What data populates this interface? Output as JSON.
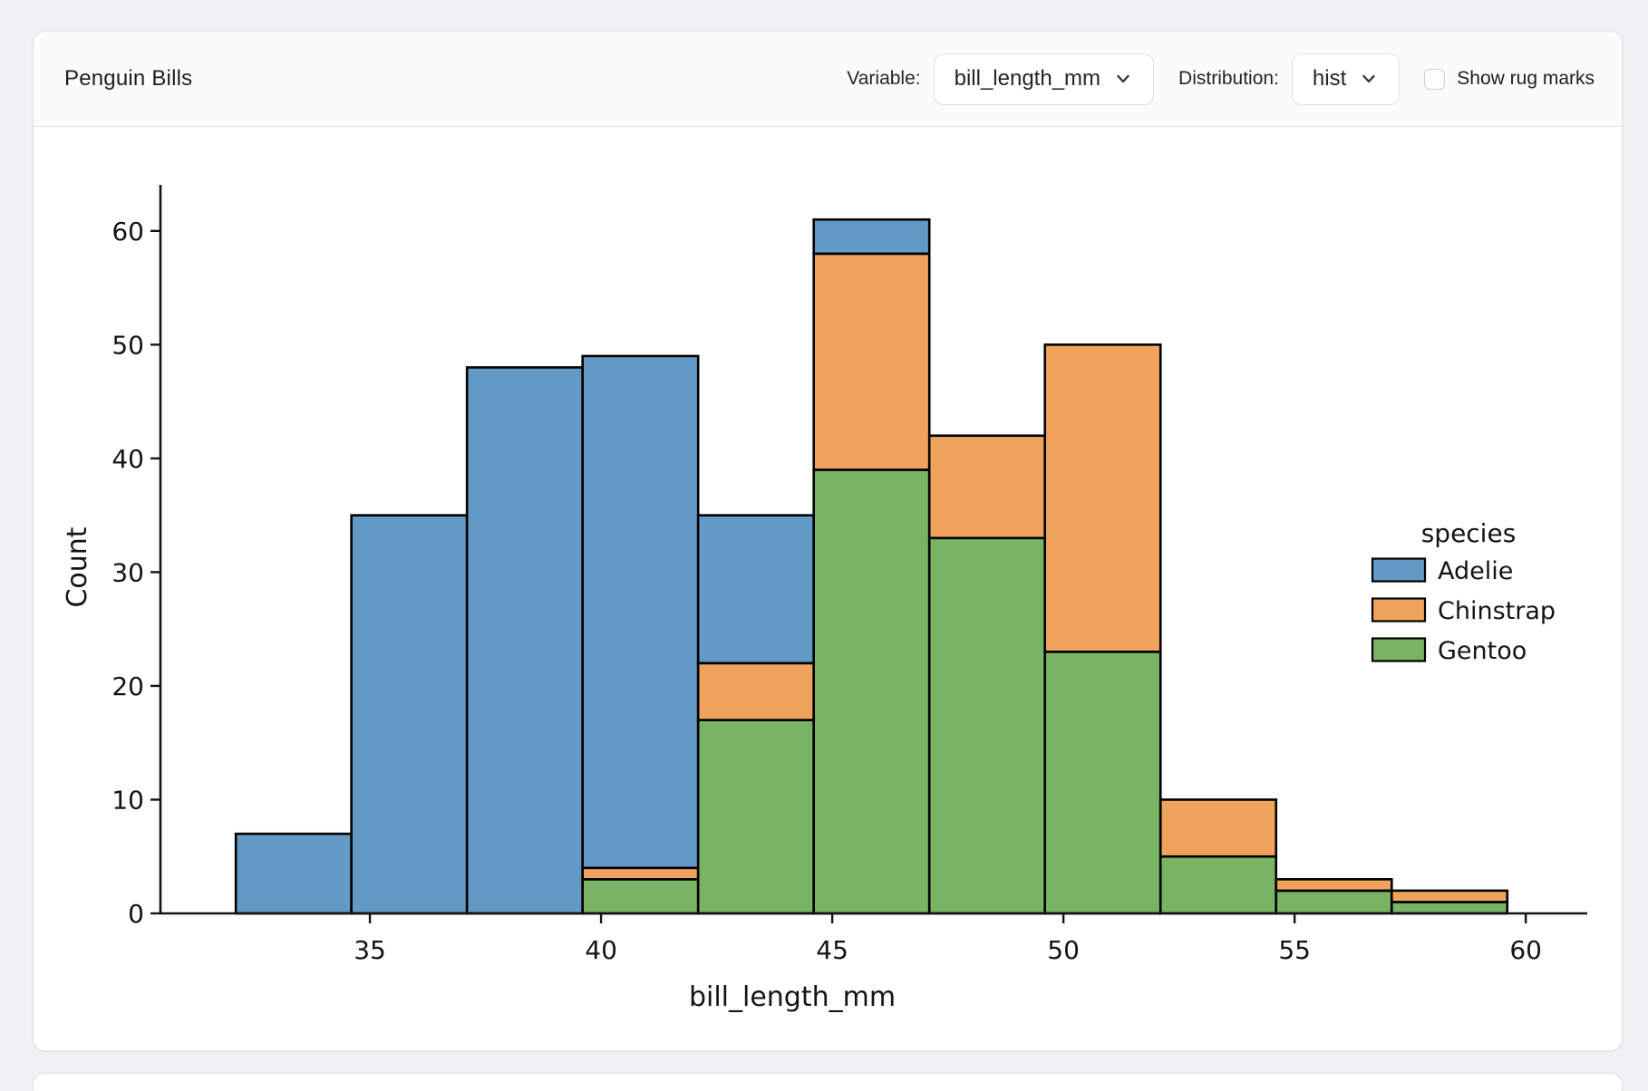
{
  "header": {
    "title": "Penguin Bills",
    "variable_label": "Variable:",
    "variable_value": "bill_length_mm",
    "distribution_label": "Distribution:",
    "distribution_value": "hist",
    "rug_label": "Show rug marks",
    "rug_checked": false
  },
  "chart_data": {
    "type": "bar",
    "subtype": "stacked-histogram",
    "title": "",
    "xlabel": "bill_length_mm",
    "ylabel": "Count",
    "bin_edges": [
      32.1,
      34.6,
      37.1,
      39.6,
      42.1,
      44.6,
      47.1,
      49.6,
      52.1,
      54.6,
      57.1,
      59.6
    ],
    "series": [
      {
        "name": "Adelie",
        "color": "#6399C5",
        "values": [
          7,
          35,
          48,
          45,
          13,
          3,
          0,
          0,
          0,
          0,
          0
        ]
      },
      {
        "name": "Chinstrap",
        "color": "#EFA35C",
        "values": [
          0,
          0,
          0,
          1,
          5,
          19,
          9,
          27,
          5,
          1,
          1
        ]
      },
      {
        "name": "Gentoo",
        "color": "#79B465",
        "values": [
          0,
          0,
          0,
          3,
          17,
          39,
          33,
          23,
          5,
          2,
          1
        ]
      }
    ],
    "stack_order_bottom_to_top": [
      "Gentoo",
      "Chinstrap",
      "Adelie"
    ],
    "bin_totals": [
      7,
      35,
      48,
      49,
      35,
      61,
      42,
      50,
      10,
      3,
      2
    ],
    "xticks": [
      35,
      40,
      45,
      50,
      55,
      60
    ],
    "yticks": [
      0,
      10,
      20,
      30,
      40,
      50,
      60
    ],
    "xlim": [
      30.47,
      61.33
    ],
    "ylim": [
      0,
      64.05
    ],
    "grid": false,
    "bar_edge_color": "#000000",
    "legend": {
      "title": "species",
      "entries": [
        "Adelie",
        "Chinstrap",
        "Gentoo"
      ],
      "position": "right"
    }
  }
}
